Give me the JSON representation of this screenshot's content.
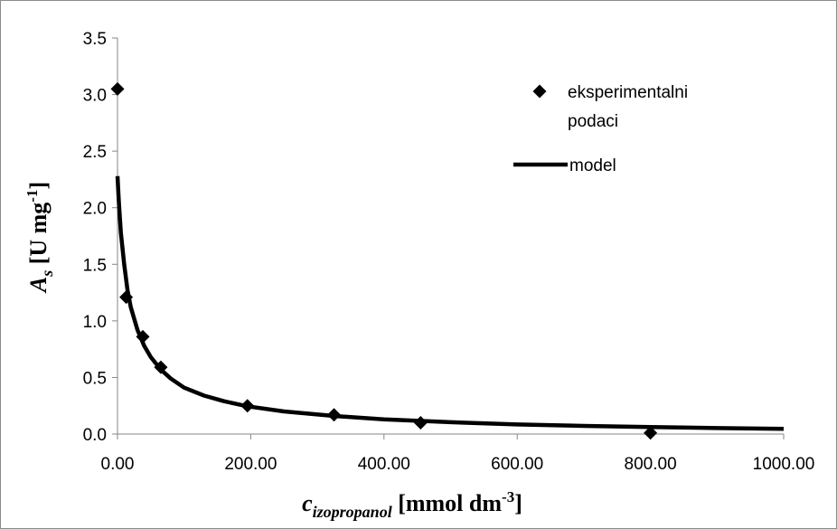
{
  "chart_data": {
    "type": "scatter",
    "xlabel": {
      "main": "c",
      "sub": "izopropanol",
      "units": " [mmol dm",
      "sup": "-3",
      "close": "]"
    },
    "ylabel": {
      "main": "A",
      "sub": "s",
      "units": " [U mg",
      "sup": "-1",
      "close": "]"
    },
    "xlim": [
      0,
      1000
    ],
    "ylim": [
      0,
      3.5
    ],
    "xticks": [
      "0.00",
      "200.00",
      "400.00",
      "600.00",
      "800.00",
      "1000.00"
    ],
    "yticks": [
      "0.0",
      "0.5",
      "1.0",
      "1.5",
      "2.0",
      "2.5",
      "3.0",
      "3.5"
    ],
    "grid": false,
    "legend_position": "top-right",
    "series": [
      {
        "name": [
          "eksperimentalni",
          "podaci"
        ],
        "kind": "markers",
        "marker": "diamond",
        "color": "#000000",
        "points": [
          {
            "x": 0,
            "y": 3.05
          },
          {
            "x": 13,
            "y": 1.21
          },
          {
            "x": 38,
            "y": 0.86
          },
          {
            "x": 65,
            "y": 0.59
          },
          {
            "x": 195,
            "y": 0.25
          },
          {
            "x": 325,
            "y": 0.17
          },
          {
            "x": 455,
            "y": 0.1
          },
          {
            "x": 800,
            "y": 0.01
          }
        ]
      },
      {
        "name": "model",
        "kind": "line",
        "color": "#000000",
        "points": [
          {
            "x": 0,
            "y": 2.28
          },
          {
            "x": 2,
            "y": 2.05
          },
          {
            "x": 5,
            "y": 1.78
          },
          {
            "x": 10,
            "y": 1.5
          },
          {
            "x": 15,
            "y": 1.27
          },
          {
            "x": 20,
            "y": 1.12
          },
          {
            "x": 30,
            "y": 0.92
          },
          {
            "x": 40,
            "y": 0.78
          },
          {
            "x": 50,
            "y": 0.68
          },
          {
            "x": 65,
            "y": 0.57
          },
          {
            "x": 80,
            "y": 0.49
          },
          {
            "x": 100,
            "y": 0.41
          },
          {
            "x": 130,
            "y": 0.34
          },
          {
            "x": 160,
            "y": 0.29
          },
          {
            "x": 195,
            "y": 0.245
          },
          {
            "x": 250,
            "y": 0.2
          },
          {
            "x": 325,
            "y": 0.16
          },
          {
            "x": 400,
            "y": 0.13
          },
          {
            "x": 500,
            "y": 0.105
          },
          {
            "x": 600,
            "y": 0.085
          },
          {
            "x": 700,
            "y": 0.072
          },
          {
            "x": 800,
            "y": 0.062
          },
          {
            "x": 900,
            "y": 0.053
          },
          {
            "x": 1000,
            "y": 0.046
          }
        ]
      }
    ]
  }
}
